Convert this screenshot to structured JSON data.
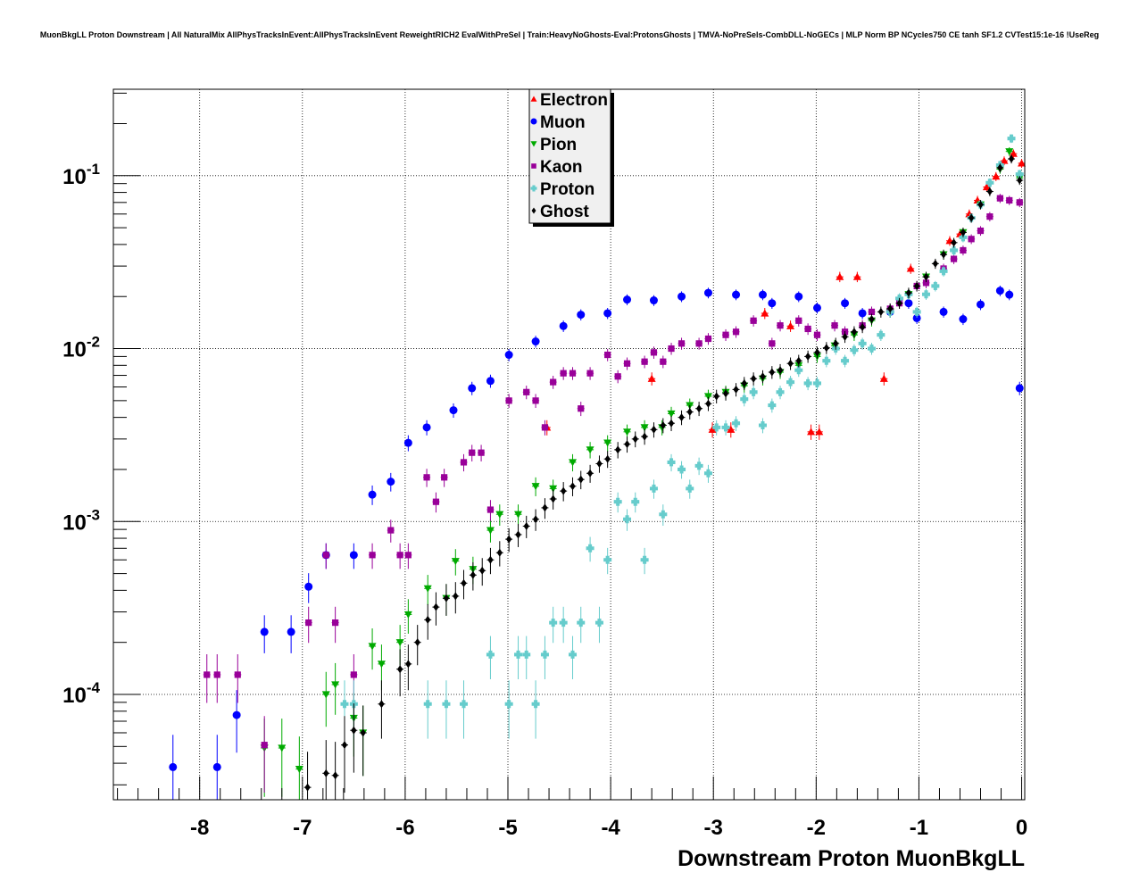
{
  "chart_data": {
    "type": "scatter",
    "title": "MuonBkgLL Proton Downstream | All NaturalMix AllPhysTracksInEvent:AllPhysTracksInEvent ReweightRICH2 EvalWithPreSel | Train:HeavyNoGhosts-Eval:ProtonsGhosts | TMVA-NoPreSels-CombDLL-NoGECs | MLP Norm BP NCycles750 CE tanh SF1.2 CVTest15:1e-16 !UseReg",
    "xlabel": "Downstream Proton MuonBkgLL",
    "ylabel": "",
    "xlim": [
      -8.84,
      0.03
    ],
    "ylim": [
      2.46e-05,
      0.316
    ],
    "yscale": "log",
    "grid": true,
    "legend_position": "top-center",
    "x_ticks": [
      -8,
      -7,
      -6,
      -5,
      -4,
      -3,
      -2,
      -1,
      0
    ],
    "x_tick_labels": [
      "-8",
      "-7",
      "-6",
      "-5",
      "-4",
      "-3",
      "-2",
      "-1",
      "0"
    ],
    "y_ticks": [
      0.0001,
      0.001,
      0.01,
      0.1
    ],
    "y_tick_bases": [
      "10",
      "10",
      "10",
      "10"
    ],
    "y_tick_exponents": [
      "-4",
      "-3",
      "-2",
      "-1"
    ],
    "series": [
      {
        "name": "Electron",
        "color": "#ff0000",
        "marker": "triangle-up",
        "x": [
          -4.62,
          -3.6,
          -3.01,
          -2.83,
          -2.5,
          -2.25,
          -2.05,
          -1.97,
          -1.77,
          -1.6,
          -1.34,
          -1.08,
          -0.7,
          -0.6,
          -0.51,
          -0.43,
          -0.34,
          -0.25,
          -0.17,
          -0.08,
          0.0
        ],
        "y": [
          0.0035,
          0.0067,
          0.0034,
          0.0034,
          0.016,
          0.0135,
          0.0033,
          0.0033,
          0.026,
          0.026,
          0.0067,
          0.029,
          0.042,
          0.046,
          0.06,
          0.072,
          0.086,
          0.099,
          0.122,
          0.134,
          0.118
        ]
      },
      {
        "name": "Muon",
        "color": "#0000ff",
        "marker": "circle",
        "x": [
          -8.26,
          -7.83,
          -7.64,
          -7.37,
          -7.11,
          -6.94,
          -6.77,
          -6.5,
          -6.32,
          -6.14,
          -5.97,
          -5.79,
          -5.53,
          -5.35,
          -5.17,
          -4.99,
          -4.73,
          -4.46,
          -4.29,
          -4.03,
          -3.84,
          -3.58,
          -3.31,
          -3.05,
          -2.78,
          -2.52,
          -2.43,
          -2.17,
          -1.99,
          -1.72,
          -1.55,
          -1.28,
          -1.1,
          -1.02,
          -0.76,
          -0.57,
          -0.4,
          -0.21,
          -0.12,
          -0.02
        ],
        "y": [
          3.8e-05,
          3.8e-05,
          7.6e-05,
          0.00023,
          0.00023,
          0.00042,
          0.00064,
          0.00064,
          0.00143,
          0.0017,
          0.00285,
          0.0035,
          0.0044,
          0.0059,
          0.0065,
          0.0092,
          0.011,
          0.0135,
          0.0157,
          0.016,
          0.0192,
          0.019,
          0.02,
          0.021,
          0.0205,
          0.0205,
          0.0183,
          0.02,
          0.0172,
          0.0183,
          0.016,
          0.0163,
          0.0183,
          0.015,
          0.0163,
          0.0148,
          0.018,
          0.0216,
          0.0205,
          0.0059
        ]
      },
      {
        "name": "Pion",
        "color": "#00aa00",
        "marker": "triangle-down",
        "x": [
          -7.37,
          -7.2,
          -7.03,
          -6.77,
          -6.68,
          -6.5,
          -6.41,
          -6.32,
          -6.23,
          -6.05,
          -5.97,
          -5.78,
          -5.6,
          -5.51,
          -5.34,
          -5.17,
          -5.08,
          -4.9,
          -4.73,
          -4.56,
          -4.37,
          -4.2,
          -4.03,
          -3.84,
          -3.67,
          -3.5,
          -3.41,
          -3.23,
          -3.05,
          -2.88,
          -2.7,
          -2.52,
          -2.35,
          -2.17,
          -1.99,
          -1.82,
          -1.63,
          -1.46,
          -1.28,
          -1.1,
          -0.93,
          -0.76,
          -0.57,
          -0.4,
          -0.21,
          -0.12,
          -0.02
        ],
        "y": [
          4.9e-05,
          4.9e-05,
          3.7e-05,
          0.0001,
          0.000114,
          7.3e-05,
          6e-05,
          0.00019,
          0.00015,
          0.0002,
          0.00029,
          0.00041,
          0.00036,
          0.00059,
          0.00053,
          0.00089,
          0.0011,
          0.0011,
          0.0016,
          0.00155,
          0.0022,
          0.0026,
          0.00285,
          0.0033,
          0.0035,
          0.0035,
          0.0042,
          0.0047,
          0.0053,
          0.0056,
          0.0061,
          0.0067,
          0.0073,
          0.008,
          0.009,
          0.0104,
          0.012,
          0.0145,
          0.0163,
          0.0206,
          0.026,
          0.035,
          0.047,
          0.068,
          0.109,
          0.138,
          0.097
        ]
      },
      {
        "name": "Kaon",
        "color": "#990099",
        "marker": "square",
        "x": [
          -7.93,
          -7.83,
          -7.63,
          -7.37,
          -6.94,
          -6.77,
          -6.68,
          -6.5,
          -6.32,
          -6.14,
          -6.05,
          -5.97,
          -5.79,
          -5.7,
          -5.62,
          -5.43,
          -5.35,
          -5.26,
          -5.17,
          -4.99,
          -4.82,
          -4.73,
          -4.64,
          -4.56,
          -4.46,
          -4.37,
          -4.29,
          -4.2,
          -4.03,
          -3.93,
          -3.84,
          -3.67,
          -3.58,
          -3.49,
          -3.41,
          -3.31,
          -3.14,
          -3.05,
          -2.88,
          -2.78,
          -2.61,
          -2.43,
          -2.35,
          -2.17,
          -2.08,
          -1.99,
          -1.82,
          -1.72,
          -1.55,
          -1.46,
          -1.28,
          -1.19,
          -1.02,
          -0.93,
          -0.76,
          -0.66,
          -0.57,
          -0.49,
          -0.4,
          -0.31,
          -0.21,
          -0.12,
          -0.02
        ],
        "y": [
          0.00013,
          0.00013,
          0.00013,
          5.1e-05,
          0.00026,
          0.00064,
          0.00026,
          0.00013,
          0.00064,
          0.00089,
          0.00064,
          0.00064,
          0.0018,
          0.0013,
          0.0018,
          0.0022,
          0.0025,
          0.0025,
          0.00117,
          0.005,
          0.0056,
          0.005,
          0.0035,
          0.0064,
          0.0072,
          0.0072,
          0.0045,
          0.0072,
          0.0092,
          0.0069,
          0.0082,
          0.0084,
          0.0095,
          0.0084,
          0.01,
          0.0107,
          0.0107,
          0.0114,
          0.012,
          0.0125,
          0.0145,
          0.0107,
          0.0136,
          0.0145,
          0.013,
          0.012,
          0.0136,
          0.0125,
          0.0136,
          0.0163,
          0.017,
          0.0183,
          0.023,
          0.024,
          0.029,
          0.033,
          0.037,
          0.043,
          0.048,
          0.058,
          0.074,
          0.072,
          0.07
        ]
      },
      {
        "name": "Proton",
        "color": "#66cccc",
        "marker": "cross",
        "x": [
          -6.59,
          -6.5,
          -5.78,
          -5.6,
          -5.43,
          -5.17,
          -4.99,
          -4.9,
          -4.82,
          -4.73,
          -4.64,
          -4.56,
          -4.46,
          -4.37,
          -4.29,
          -4.2,
          -4.11,
          -4.03,
          -3.93,
          -3.84,
          -3.76,
          -3.67,
          -3.58,
          -3.49,
          -3.41,
          -3.31,
          -3.23,
          -3.14,
          -3.05,
          -2.97,
          -2.88,
          -2.78,
          -2.7,
          -2.61,
          -2.52,
          -2.43,
          -2.35,
          -2.25,
          -2.17,
          -2.08,
          -1.99,
          -1.9,
          -1.81,
          -1.72,
          -1.63,
          -1.55,
          -1.46,
          -1.37,
          -1.28,
          -1.19,
          -1.1,
          -1.02,
          -0.93,
          -0.84,
          -0.76,
          -0.66,
          -0.57,
          -0.49,
          -0.4,
          -0.31,
          -0.21,
          -0.1,
          -0.02
        ],
        "y": [
          8.8e-05,
          8.8e-05,
          8.8e-05,
          8.8e-05,
          8.8e-05,
          0.00017,
          8.8e-05,
          0.00017,
          0.00017,
          8.8e-05,
          0.00017,
          0.00026,
          0.00026,
          0.00017,
          0.00026,
          0.0007,
          0.00026,
          0.0006,
          0.0013,
          0.00103,
          0.0013,
          0.0006,
          0.00155,
          0.0011,
          0.0022,
          0.002,
          0.00155,
          0.0021,
          0.0019,
          0.0035,
          0.0035,
          0.0037,
          0.0051,
          0.0056,
          0.0036,
          0.0047,
          0.0056,
          0.0064,
          0.0075,
          0.0063,
          0.0063,
          0.0085,
          0.01,
          0.0085,
          0.0098,
          0.0107,
          0.01,
          0.012,
          0.0163,
          0.0195,
          0.0206,
          0.0163,
          0.0206,
          0.023,
          0.028,
          0.037,
          0.044,
          0.057,
          0.068,
          0.091,
          0.115,
          0.164,
          0.102
        ]
      },
      {
        "name": "Ghost",
        "color": "#000000",
        "marker": "diamond",
        "x": [
          -6.95,
          -6.77,
          -6.68,
          -6.59,
          -6.5,
          -6.41,
          -6.23,
          -6.05,
          -5.97,
          -5.88,
          -5.78,
          -5.7,
          -5.6,
          -5.51,
          -5.43,
          -5.34,
          -5.25,
          -5.17,
          -5.08,
          -4.99,
          -4.9,
          -4.82,
          -4.73,
          -4.64,
          -4.56,
          -4.46,
          -4.37,
          -4.29,
          -4.2,
          -4.11,
          -4.03,
          -3.93,
          -3.84,
          -3.76,
          -3.67,
          -3.58,
          -3.49,
          -3.41,
          -3.31,
          -3.23,
          -3.14,
          -3.05,
          -2.97,
          -2.88,
          -2.78,
          -2.7,
          -2.61,
          -2.52,
          -2.43,
          -2.35,
          -2.25,
          -2.17,
          -2.08,
          -1.99,
          -1.9,
          -1.81,
          -1.72,
          -1.63,
          -1.55,
          -1.46,
          -1.37,
          -1.28,
          -1.19,
          -1.1,
          -1.02,
          -0.93,
          -0.84,
          -0.76,
          -0.66,
          -0.57,
          -0.49,
          -0.4,
          -0.31,
          -0.21,
          -0.1,
          -0.02
        ],
        "y": [
          2.9e-05,
          3.5e-05,
          3.4e-05,
          5.1e-05,
          6.2e-05,
          6e-05,
          8.8e-05,
          0.00014,
          0.00015,
          0.0002,
          0.00027,
          0.00032,
          0.00036,
          0.00037,
          0.00044,
          0.00049,
          0.00052,
          0.0006,
          0.00066,
          0.00079,
          0.00084,
          0.00094,
          0.00103,
          0.0012,
          0.00135,
          0.0015,
          0.0016,
          0.00175,
          0.0019,
          0.00216,
          0.0023,
          0.0026,
          0.0028,
          0.003,
          0.0031,
          0.0034,
          0.0036,
          0.0037,
          0.004,
          0.0043,
          0.0045,
          0.0048,
          0.0053,
          0.0055,
          0.0058,
          0.0063,
          0.0067,
          0.0069,
          0.0073,
          0.0075,
          0.0082,
          0.0085,
          0.009,
          0.0095,
          0.0101,
          0.0107,
          0.0117,
          0.0125,
          0.0133,
          0.0148,
          0.0163,
          0.017,
          0.0183,
          0.021,
          0.023,
          0.026,
          0.031,
          0.035,
          0.041,
          0.047,
          0.057,
          0.068,
          0.081,
          0.111,
          0.125,
          0.094
        ]
      }
    ]
  }
}
